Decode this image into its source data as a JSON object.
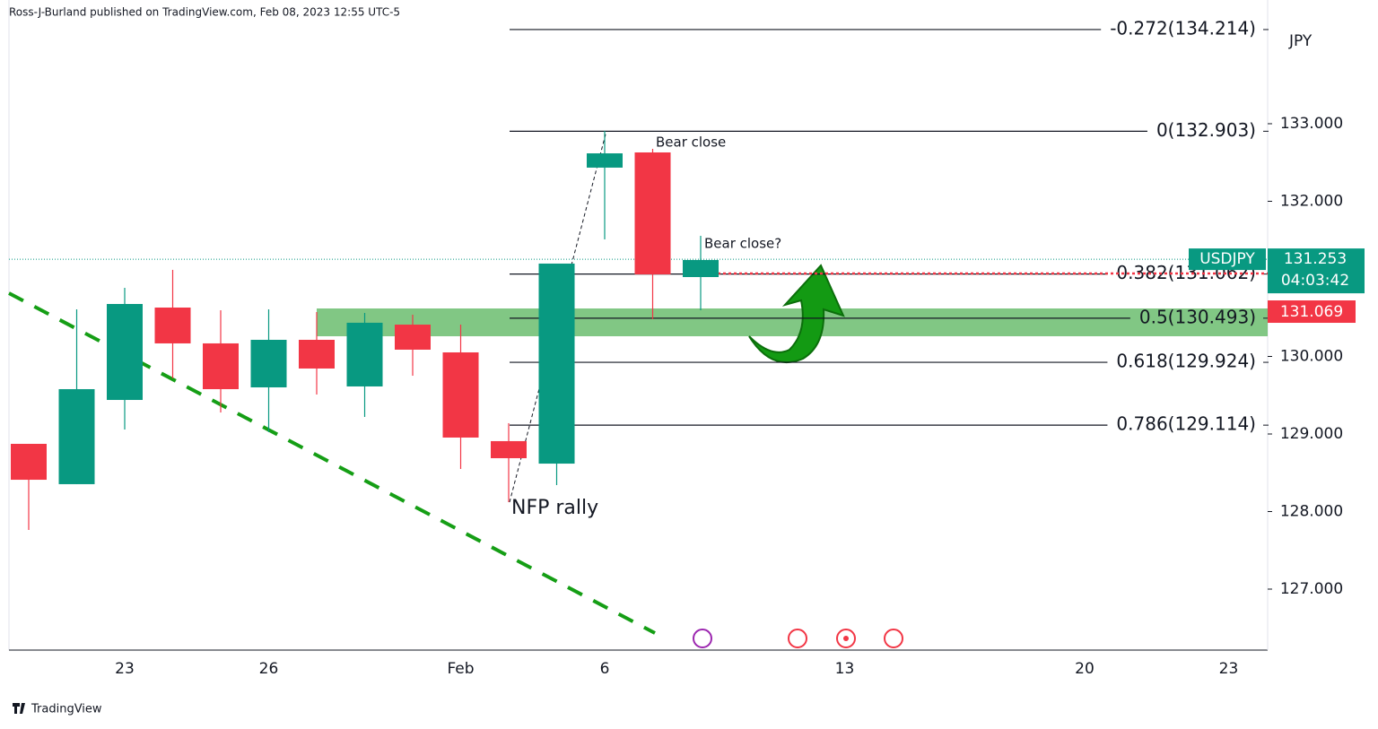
{
  "header": "Ross-J-Burland published on TradingView.com, Feb 08, 2023 12:55 UTC-5",
  "footer": "TradingView",
  "chart_data": {
    "type": "candlestick",
    "currency": "JPY",
    "categories": [
      null,
      null,
      "23",
      null,
      null,
      "26",
      null,
      null,
      null,
      "Feb",
      null,
      null,
      "6",
      null,
      null,
      null,
      null,
      "13",
      null,
      null,
      null,
      null,
      "20",
      null,
      null,
      "23"
    ],
    "open": [
      128.873,
      128.353,
      129.439,
      130.63,
      130.168,
      129.601,
      130.214,
      129.613,
      130.41,
      130.052,
      128.908,
      128.618,
      132.434,
      132.63,
      131.023,
      null,
      null,
      null,
      null,
      null,
      null,
      null,
      null,
      null,
      null,
      null
    ],
    "high": [
      128.873,
      130.607,
      130.884,
      131.116,
      130.595,
      130.607,
      130.572,
      130.561,
      130.538,
      130.41,
      129.139,
      131.197,
      132.908,
      132.676,
      131.555,
      null,
      null,
      null,
      null,
      null,
      null,
      null,
      null,
      null,
      null,
      null
    ],
    "low": [
      127.763,
      128.353,
      129.058,
      129.717,
      129.277,
      129.023,
      129.509,
      129.22,
      129.751,
      128.549,
      128.121,
      128.341,
      131.509,
      130.48,
      130.595,
      null,
      null,
      null,
      null,
      null,
      null,
      null,
      null,
      null,
      null,
      null
    ],
    "close": [
      128.41,
      129.578,
      130.676,
      130.168,
      129.578,
      130.214,
      129.844,
      130.434,
      130.087,
      128.954,
      128.688,
      131.197,
      132.618,
      131.058,
      131.243,
      null,
      null,
      null,
      null,
      null,
      null,
      null,
      null,
      null,
      null,
      null
    ],
    "up_color": "#089981",
    "down_color": "#f23645",
    "ylim": [
      126.214,
      134.595
    ],
    "yticks": [
      {
        "value": 127,
        "label": "127.000"
      },
      {
        "value": 128,
        "label": "128.000"
      },
      {
        "value": 129,
        "label": "129.000"
      },
      {
        "value": 130,
        "label": "130.000"
      },
      {
        "value": 131,
        "label": "131.000"
      },
      {
        "value": 132,
        "label": "132.000"
      },
      {
        "value": 133,
        "label": "133.000"
      }
    ],
    "fib_levels": [
      {
        "value": 134.214,
        "label": "-0.272(134.214)"
      },
      {
        "value": 132.903,
        "label": "0(132.903)"
      },
      {
        "value": 131.062,
        "label": "0.382(131.062)"
      },
      {
        "value": 130.493,
        "label": "0.5(130.493)"
      },
      {
        "value": 129.924,
        "label": "0.618(129.924)"
      },
      {
        "value": 129.114,
        "label": "0.786(129.114)"
      }
    ],
    "last_price": {
      "symbol": "USDJPY",
      "value": 131.253,
      "countdown": "04:03:42"
    },
    "marker_price": 131.069,
    "annotations": [
      "Bear close",
      "Bear close?",
      "NFP rally"
    ]
  }
}
